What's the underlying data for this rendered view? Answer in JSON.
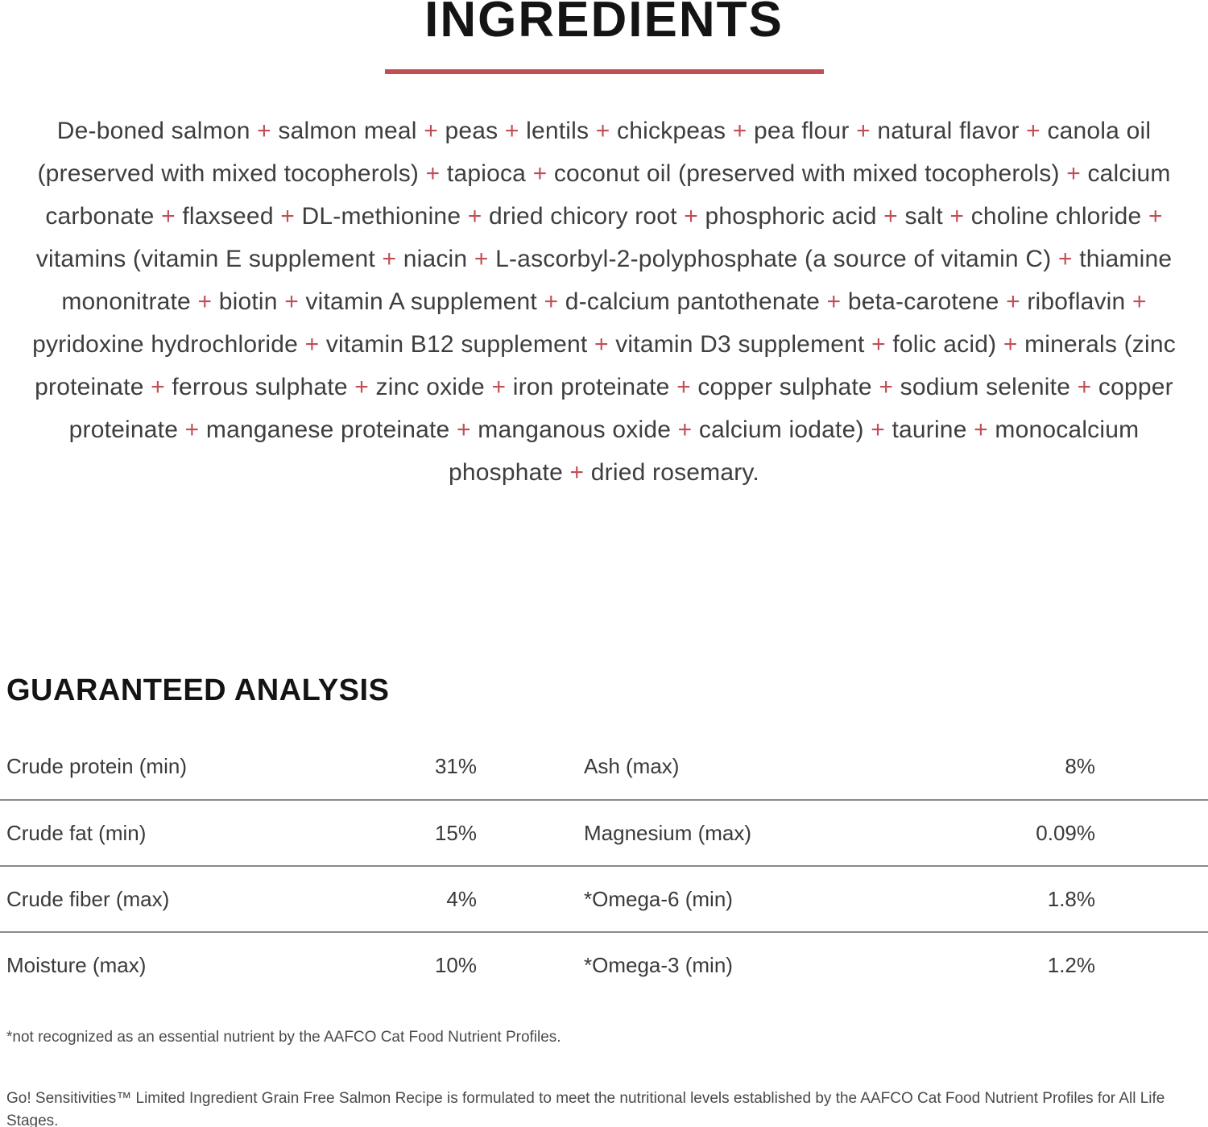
{
  "colors": {
    "accent": "#c24e55"
  },
  "header": {
    "title": "INGREDIENTS"
  },
  "ingredients": {
    "separator": "+",
    "text": "De-boned salmon + salmon meal + peas + lentils + chickpeas + pea flour + natural flavor + canola oil (preserved with mixed tocopherols) + tapioca + coconut oil (preserved with mixed tocopherols) + calcium carbonate + flaxseed + DL-methionine + dried chicory root + phosphoric acid + salt + choline chloride + vitamins (vitamin E supplement + niacin + L-ascorbyl-2-polyphosphate (a source of vitamin C) + thiamine mononitrate + biotin + vitamin A supplement + d-calcium pantothenate + beta-carotene + riboflavin + pyridoxine hydrochloride + vitamin B12 supplement + vitamin D3 supplement + folic acid) + minerals (zinc proteinate + ferrous sulphate + zinc oxide + iron proteinate + copper sulphate + sodium selenite + copper proteinate + manganese proteinate + manganous oxide + calcium iodate) + taurine + monocalcium phosphate + dried rosemary."
  },
  "analysis": {
    "heading": "GUARANTEED ANALYSIS",
    "rows": [
      {
        "left_label": "Crude protein (min)",
        "left_value": "31%",
        "right_label": "Ash (max)",
        "right_value": "8%"
      },
      {
        "left_label": "Crude fat (min)",
        "left_value": "15%",
        "right_label": "Magnesium (max)",
        "right_value": "0.09%"
      },
      {
        "left_label": "Crude fiber (max)",
        "left_value": "4%",
        "right_label": "*Omega-6 (min)",
        "right_value": "1.8%"
      },
      {
        "left_label": "Moisture (max)",
        "left_value": "10%",
        "right_label": "*Omega-3 (min)",
        "right_value": "1.2%"
      }
    ]
  },
  "footnotes": {
    "asterisk_note": "*not recognized as an essential nutrient by the AAFCO Cat Food Nutrient Profiles.",
    "aafco_statement": "Go! Sensitivities™ Limited Ingredient Grain Free Salmon Recipe is formulated to meet the nutritional levels established by the AAFCO Cat Food Nutrient Profiles for All Life Stages."
  }
}
